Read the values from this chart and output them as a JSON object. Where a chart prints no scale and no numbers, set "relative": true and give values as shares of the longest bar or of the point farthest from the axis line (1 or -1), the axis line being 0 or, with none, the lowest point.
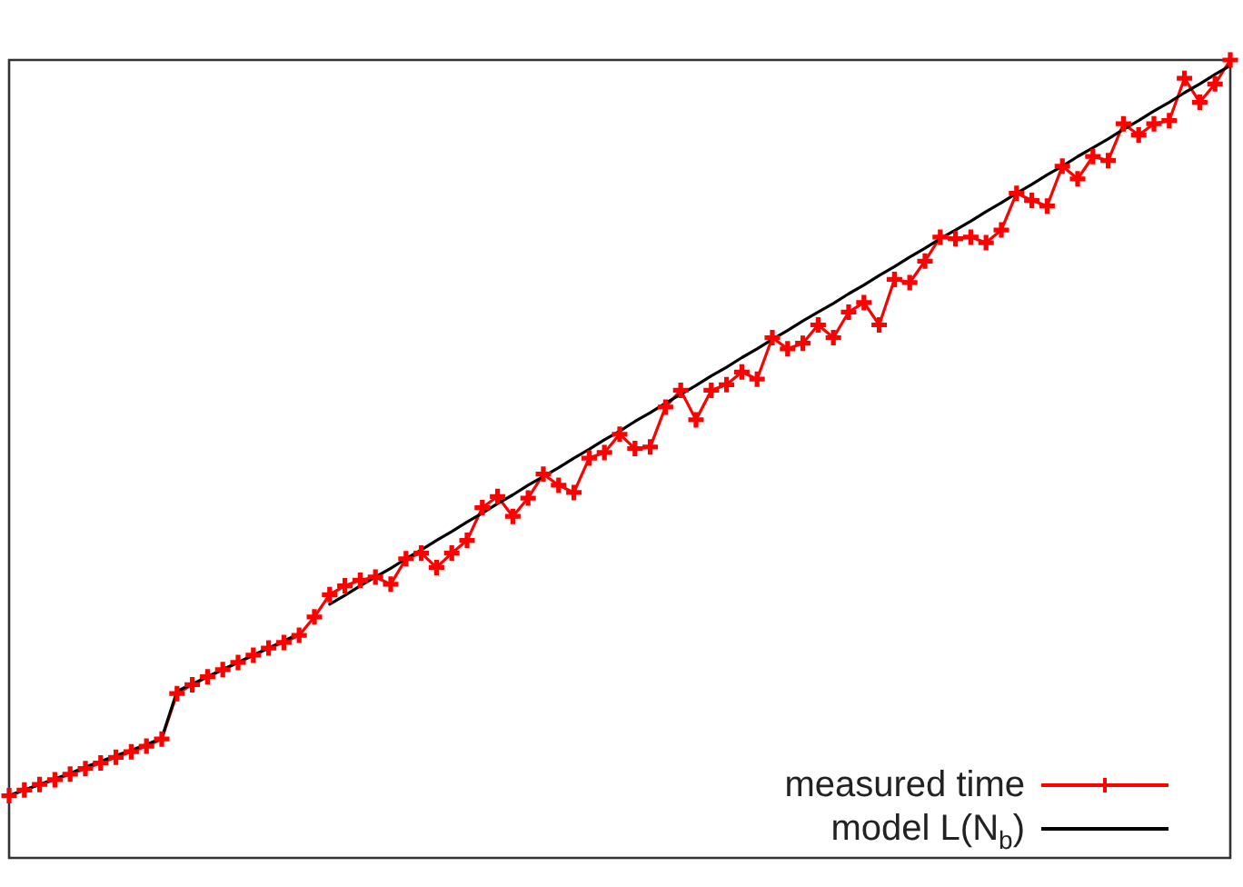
{
  "chart_data": {
    "type": "line",
    "relative": true,
    "grid": false,
    "legend": "bottom right",
    "categories": [
      null,
      null,
      null,
      null,
      null,
      null,
      null,
      null,
      null,
      null,
      null,
      null,
      null,
      null,
      null,
      null,
      null,
      null,
      null,
      null,
      null,
      null,
      null,
      null,
      null,
      null,
      null,
      null,
      null,
      null,
      null,
      null,
      null,
      null,
      null,
      null,
      null,
      null,
      null,
      null,
      null,
      null,
      null,
      null,
      null,
      null,
      null,
      null,
      null,
      null,
      null,
      null,
      null,
      null,
      null,
      null,
      null,
      null,
      null,
      null,
      null,
      null,
      null,
      null,
      null,
      null,
      null,
      null,
      null,
      null,
      null,
      null,
      null,
      null,
      null,
      null,
      null,
      null,
      null,
      null,
      null
    ],
    "series": [
      {
        "name": "measured time",
        "color": "#ff0000",
        "marker": "cross",
        "values": [
          0.078,
          0.085,
          0.092,
          0.098,
          0.105,
          0.112,
          0.119,
          0.126,
          0.133,
          0.14,
          0.149,
          0.206,
          0.217,
          0.227,
          0.236,
          0.245,
          0.254,
          0.263,
          0.27,
          0.279,
          0.302,
          0.33,
          0.341,
          0.348,
          0.352,
          0.343,
          0.375,
          0.382,
          0.364,
          0.382,
          0.398,
          0.439,
          0.453,
          0.428,
          0.451,
          0.481,
          0.467,
          0.458,
          0.501,
          0.508,
          0.531,
          0.513,
          0.515,
          0.565,
          0.586,
          0.549,
          0.586,
          0.593,
          0.609,
          0.6,
          0.652,
          0.638,
          0.645,
          0.668,
          0.652,
          0.684,
          0.696,
          0.668,
          0.725,
          0.721,
          0.748,
          0.778,
          0.776,
          0.778,
          0.771,
          0.787,
          0.833,
          0.824,
          0.817,
          0.867,
          0.851,
          0.879,
          0.874,
          0.92,
          0.906,
          0.92,
          0.924,
          0.977,
          0.947,
          0.97,
          1
        ]
      },
      {
        "name": "model L(N$_{b}$)",
        "color": "#000000",
        "marker": "none",
        "values": [
          0.078,
          0.085,
          0.092,
          0.099,
          0.106,
          0.114,
          0.121,
          0.128,
          0.135,
          0.142,
          0.15,
          0.209,
          0.218,
          0.227,
          0.236,
          0.245,
          0.254,
          0.263,
          0.272,
          0.281,
          null,
          0.318,
          0.329,
          0.341,
          0.352,
          0.363,
          0.375,
          0.386,
          0.398,
          0.409,
          0.421,
          0.432,
          0.444,
          0.455,
          0.467,
          0.478,
          0.489,
          0.501,
          0.512,
          0.524,
          0.535,
          0.547,
          0.558,
          0.57,
          0.581,
          0.592,
          0.604,
          0.615,
          0.627,
          0.638,
          0.65,
          0.661,
          0.673,
          0.684,
          0.695,
          0.707,
          0.718,
          0.73,
          0.741,
          0.753,
          0.764,
          0.776,
          0.787,
          0.798,
          0.81,
          0.821,
          0.833,
          0.844,
          0.856,
          0.867,
          0.879,
          0.89,
          0.901,
          0.913,
          0.924,
          0.936,
          0.947,
          0.959,
          0.97,
          0.982,
          0.993
        ]
      }
    ]
  }
}
